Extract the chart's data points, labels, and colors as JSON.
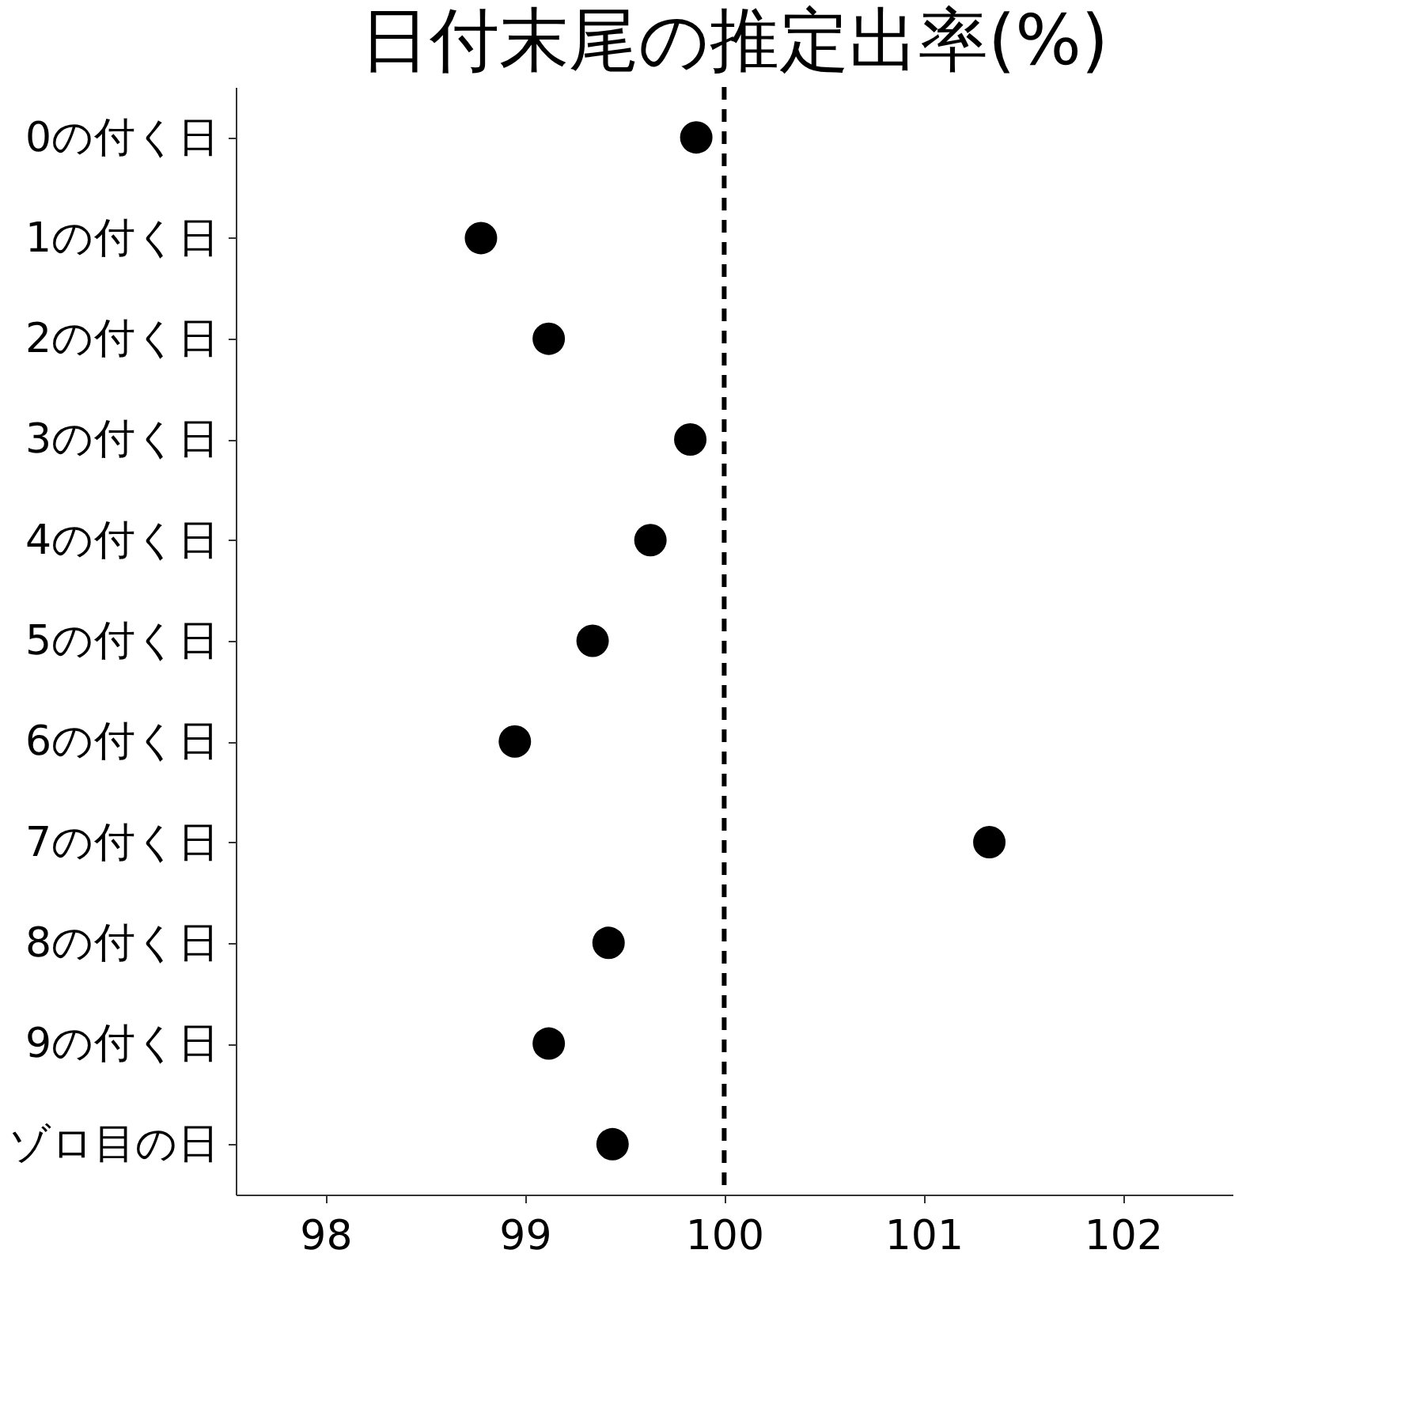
{
  "chart_data": {
    "type": "scatter",
    "orientation": "horizontal",
    "title": "日付末尾の推定出率(%)",
    "categories": [
      "0の付く日",
      "1の付く日",
      "2の付く日",
      "3の付く日",
      "4の付く日",
      "5の付く日",
      "6の付く日",
      "7の付く日",
      "8の付く日",
      "9の付く日",
      "ゾロ目の日"
    ],
    "values": [
      99.86,
      98.78,
      99.12,
      99.83,
      99.63,
      99.34,
      98.95,
      101.33,
      99.42,
      99.12,
      99.44
    ],
    "color": "#000000",
    "marker": "circle",
    "xlim": [
      97.55,
      102.55
    ],
    "xticks": [
      98,
      99,
      100,
      101,
      102
    ],
    "ref_lines": [
      {
        "axis": "x",
        "value": 100,
        "color": "#000000",
        "line_style": "dashed"
      }
    ],
    "grid": false
  }
}
